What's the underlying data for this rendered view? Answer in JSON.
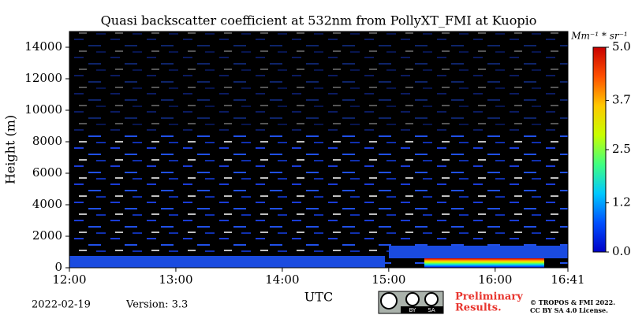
{
  "chart_data": {
    "type": "heatmap",
    "title": "Quasi backscatter coefficient at 532nm from PollyXT_FMI at Kuopio",
    "xlabel": "UTC",
    "ylabel": "Height (m)",
    "xlim": [
      12,
      16.6833
    ],
    "xticks": [
      {
        "value": 12,
        "label": "12:00"
      },
      {
        "value": 13,
        "label": "13:00"
      },
      {
        "value": 14,
        "label": "14:00"
      },
      {
        "value": 15,
        "label": "15:00"
      },
      {
        "value": 16,
        "label": "16:00"
      },
      {
        "value": 16.6833,
        "label": "16:41"
      }
    ],
    "ylim": [
      0,
      15000
    ],
    "yticks": [
      0,
      2000,
      4000,
      6000,
      8000,
      10000,
      12000,
      14000
    ],
    "colorbar_label": "Mm⁻¹ * sr⁻¹",
    "clim": [
      0,
      5
    ],
    "cticks": [
      {
        "value": 0,
        "label": "0.0"
      },
      1.2,
      2.5,
      3.7,
      {
        "value": 5,
        "label": "5.0"
      }
    ],
    "colormap": [
      "#0000c8",
      "#0050ff",
      "#00c8ff",
      "#40ff80",
      "#c8ff00",
      "#ffc800",
      "#ff5000",
      "#c80000"
    ],
    "date": "2022-02-19",
    "version": "Version: 3.3",
    "preliminary": [
      "Preliminary",
      "Results."
    ],
    "copyright": [
      "© TROPOS & FMI 2022.",
      "CC BY SA 4.0 License."
    ],
    "license_badge": [
      "BY",
      "SA"
    ]
  }
}
